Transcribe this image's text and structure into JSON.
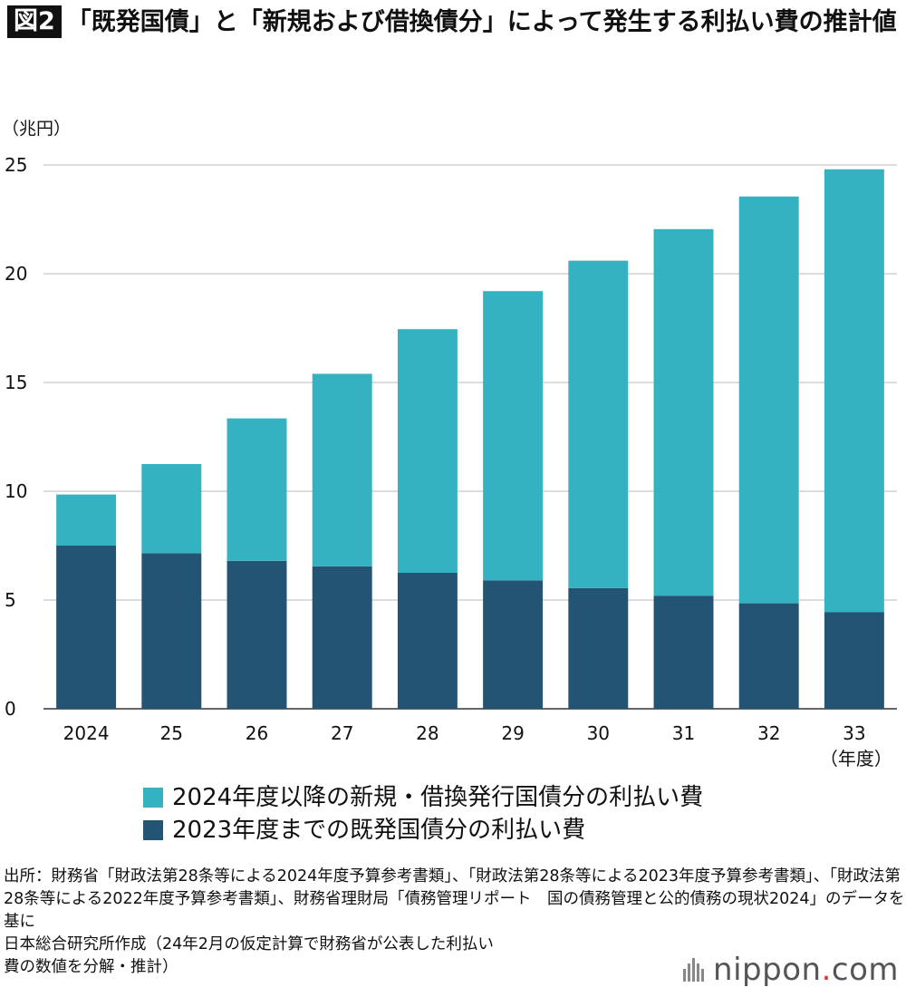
{
  "header": {
    "badge": "図2",
    "title": "「既発国債」と「新規および借換債分」によって発生する利払い費の推計値"
  },
  "chart_data": {
    "type": "bar",
    "stacked": true,
    "unit_label": "（兆円）",
    "categories": [
      "2024",
      "25",
      "26",
      "27",
      "28",
      "29",
      "30",
      "31",
      "32",
      "33"
    ],
    "x_unit_label": "（年度）",
    "ylim": [
      0,
      25
    ],
    "yticks": [
      0,
      5,
      10,
      15,
      20,
      25
    ],
    "grid": true,
    "series": [
      {
        "name": "2023年度までの既発国債分の利払い費",
        "color": "#235473",
        "values": [
          7.5,
          7.15,
          6.8,
          6.55,
          6.25,
          5.9,
          5.55,
          5.2,
          4.85,
          4.45
        ]
      },
      {
        "name": "2024年度以降の新規・借換発行国債分の利払い費",
        "color": "#35b2c1",
        "values": [
          2.35,
          4.1,
          6.55,
          8.85,
          11.2,
          13.3,
          15.05,
          16.85,
          18.7,
          20.35
        ]
      }
    ],
    "legend_placement": "bottom",
    "legend_order": [
      1,
      0
    ]
  },
  "source": {
    "text": "出所：財務省「財政法第28条等による2024年度予算参考書類」、「財政法第28条等による2023年度予算参考書類」、「財政法第28条等による2022年度予算参考書類」、財務省理財局「債務管理リポート　国の債務管理と公的債務の現状2024」のデータを基に\n日本総合研究所作成（24年2月の仮定計算で財務省が公表した利払い\n費の数値を分解・推計）"
  },
  "logo": {
    "name": "nippon",
    "dot": ".",
    "suffix": "com",
    "accent_color": "#e5332a"
  }
}
